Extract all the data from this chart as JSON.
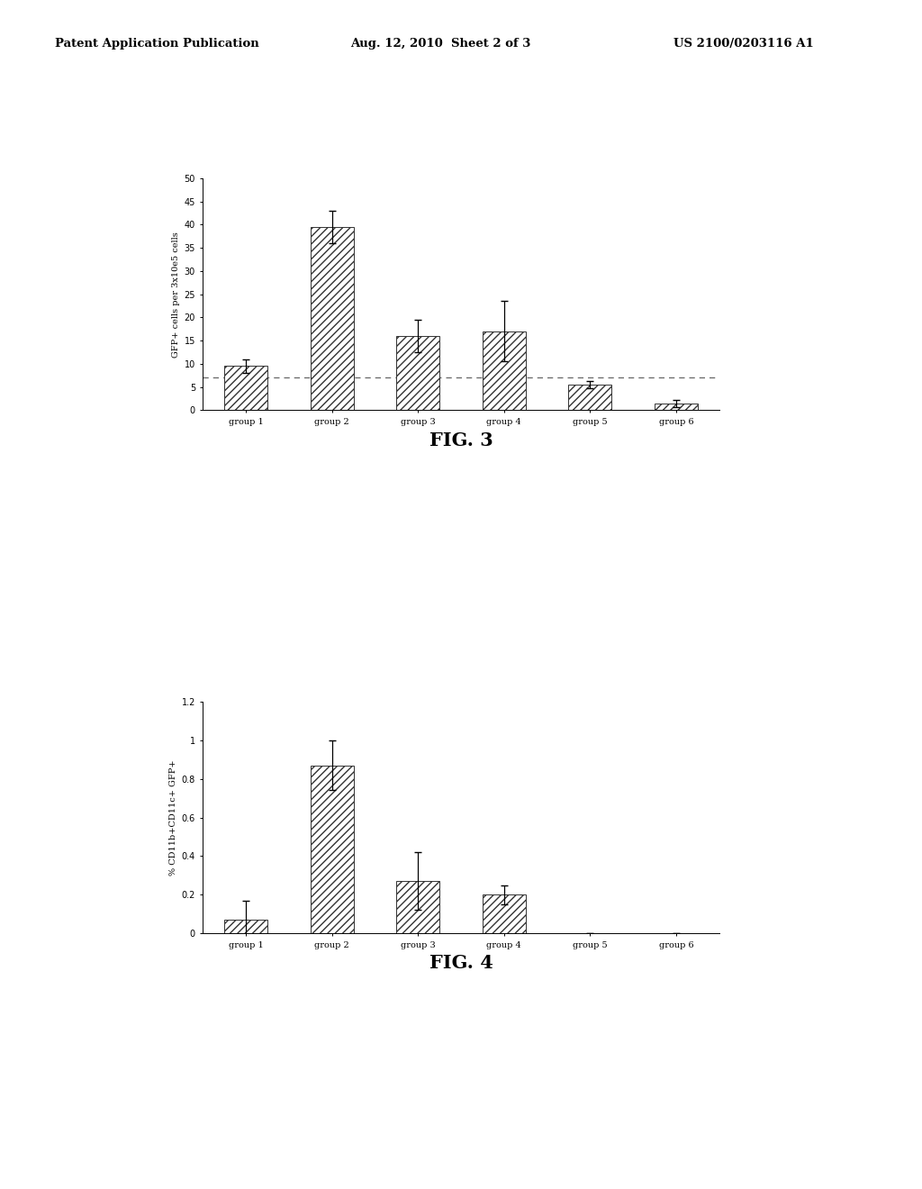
{
  "fig3": {
    "groups": [
      "group 1",
      "group 2",
      "group 3",
      "group 4",
      "group 5",
      "group 6"
    ],
    "values": [
      9.5,
      39.5,
      16.0,
      17.0,
      5.5,
      1.5
    ],
    "errors": [
      1.5,
      3.5,
      3.5,
      6.5,
      0.8,
      0.8
    ],
    "dashed_line_y": 7.0,
    "ylabel": "GFP+ cells per 3x10e5 cells",
    "ylim": [
      0,
      50
    ],
    "yticks": [
      0,
      5,
      10,
      15,
      20,
      25,
      30,
      35,
      40,
      45,
      50
    ],
    "fig_label": "FIG. 3"
  },
  "fig4": {
    "groups": [
      "group 1",
      "group 2",
      "group 3",
      "group 4",
      "group 5",
      "group 6"
    ],
    "values": [
      0.07,
      0.87,
      0.27,
      0.2,
      0.0,
      0.0
    ],
    "errors": [
      0.1,
      0.13,
      0.15,
      0.05,
      0.0,
      0.0
    ],
    "ylabel": "% CD11b+CD11c+ GFP+",
    "ylim": [
      0,
      1.2
    ],
    "yticks": [
      0,
      0.2,
      0.4,
      0.6,
      0.8,
      1,
      1.2
    ],
    "fig_label": "FIG. 4"
  },
  "header_left": "Patent Application Publication",
  "header_mid": "Aug. 12, 2010  Sheet 2 of 3",
  "header_right": "US 2100/0203116 A1",
  "bar_color": "white",
  "hatch_pattern": "////",
  "background_color": "#ffffff",
  "text_color": "#000000",
  "bar_edge_color": "#333333",
  "dashed_line_color": "#666666"
}
